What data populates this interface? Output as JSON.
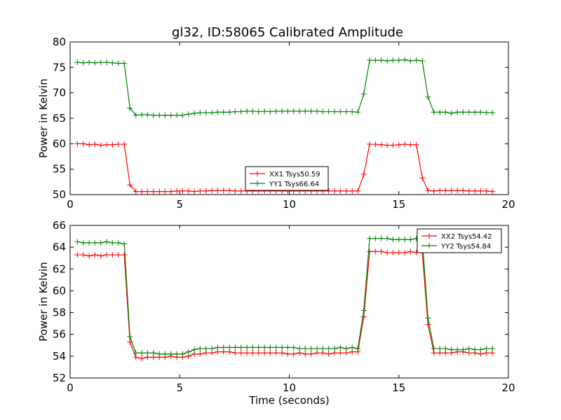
{
  "figure_title": "gl32, ID:58065 Calibrated Amplitude",
  "colors": {
    "xx": "#ff0000",
    "yy": "#008000"
  },
  "chart_data": [
    {
      "type": "line",
      "title": "gl32, ID:58065 Calibrated Amplitude",
      "xlabel": "",
      "ylabel": "Power in Kelvin",
      "xlim": [
        0,
        20
      ],
      "ylim": [
        50,
        80
      ],
      "xticks": [
        "0",
        "5",
        "10",
        "15",
        "20"
      ],
      "yticks": [
        "50",
        "55",
        "60",
        "65",
        "70",
        "75",
        "80"
      ],
      "grid": false,
      "legend_position": "lower-center",
      "x": [
        0.33,
        0.6,
        0.87,
        1.13,
        1.4,
        1.67,
        1.93,
        2.2,
        2.47,
        2.73,
        3.0,
        3.27,
        3.53,
        3.8,
        4.07,
        4.33,
        4.6,
        4.87,
        5.13,
        5.4,
        5.67,
        5.93,
        6.2,
        6.47,
        6.73,
        7.0,
        7.27,
        7.53,
        7.8,
        8.07,
        8.33,
        8.6,
        8.87,
        9.13,
        9.4,
        9.67,
        9.93,
        10.2,
        10.47,
        10.73,
        11.0,
        11.27,
        11.53,
        11.8,
        12.07,
        12.33,
        12.6,
        12.87,
        13.13,
        13.4,
        13.67,
        13.93,
        14.2,
        14.47,
        14.73,
        15.0,
        15.27,
        15.53,
        15.8,
        16.07,
        16.33,
        16.6,
        16.87,
        17.13,
        17.4,
        17.67,
        17.93,
        18.2,
        18.47,
        18.73,
        19.0,
        19.27
      ],
      "series": [
        {
          "name": "XX1 Tsys50.59",
          "color": "#ff0000",
          "values": [
            60.0,
            60.0,
            59.8,
            59.9,
            59.7,
            59.8,
            59.8,
            59.9,
            59.9,
            51.9,
            50.6,
            50.6,
            50.6,
            50.6,
            50.6,
            50.6,
            50.6,
            50.7,
            50.7,
            50.7,
            50.6,
            50.7,
            50.7,
            50.8,
            50.8,
            50.8,
            50.8,
            50.7,
            50.7,
            50.7,
            50.7,
            50.7,
            50.7,
            50.7,
            50.7,
            50.7,
            50.7,
            50.7,
            50.7,
            50.7,
            50.7,
            50.7,
            50.7,
            50.7,
            50.7,
            50.7,
            50.7,
            50.7,
            50.7,
            54.0,
            59.9,
            59.9,
            59.8,
            59.7,
            59.7,
            59.8,
            59.9,
            59.8,
            59.8,
            53.3,
            50.8,
            50.7,
            50.8,
            50.8,
            50.8,
            50.8,
            50.8,
            50.7,
            50.7,
            50.7,
            50.7,
            50.6
          ]
        },
        {
          "name": "YY1 Tsys66.64",
          "color": "#008000",
          "values": [
            76.0,
            75.9,
            76.0,
            75.9,
            76.0,
            76.0,
            75.9,
            75.8,
            75.8,
            67.0,
            65.6,
            65.7,
            65.7,
            65.6,
            65.6,
            65.6,
            65.6,
            65.6,
            65.6,
            65.8,
            66.0,
            66.1,
            66.1,
            66.1,
            66.2,
            66.2,
            66.2,
            66.3,
            66.3,
            66.4,
            66.4,
            66.3,
            66.4,
            66.3,
            66.4,
            66.4,
            66.4,
            66.4,
            66.4,
            66.4,
            66.4,
            66.4,
            66.3,
            66.3,
            66.3,
            66.3,
            66.3,
            66.3,
            66.2,
            69.8,
            76.4,
            76.4,
            76.4,
            76.3,
            76.4,
            76.4,
            76.5,
            76.3,
            76.4,
            76.3,
            69.2,
            66.2,
            66.2,
            66.2,
            66.0,
            66.2,
            66.2,
            66.2,
            66.2,
            66.2,
            66.1,
            66.1
          ]
        }
      ]
    },
    {
      "type": "line",
      "title": "",
      "xlabel": "Time (seconds)",
      "ylabel": "Power in Kelvin",
      "xlim": [
        0,
        20
      ],
      "ylim": [
        52,
        66
      ],
      "xticks": [
        "0",
        "5",
        "10",
        "15",
        "20"
      ],
      "yticks": [
        "52",
        "54",
        "56",
        "58",
        "60",
        "62",
        "64",
        "66"
      ],
      "grid": false,
      "legend_position": "upper-right",
      "x": [
        0.33,
        0.6,
        0.87,
        1.13,
        1.4,
        1.67,
        1.93,
        2.2,
        2.47,
        2.73,
        3.0,
        3.27,
        3.53,
        3.8,
        4.07,
        4.33,
        4.6,
        4.87,
        5.13,
        5.4,
        5.67,
        5.93,
        6.2,
        6.47,
        6.73,
        7.0,
        7.27,
        7.53,
        7.8,
        8.07,
        8.33,
        8.6,
        8.87,
        9.13,
        9.4,
        9.67,
        9.93,
        10.2,
        10.47,
        10.73,
        11.0,
        11.27,
        11.53,
        11.8,
        12.07,
        12.33,
        12.6,
        12.87,
        13.13,
        13.4,
        13.67,
        13.93,
        14.2,
        14.47,
        14.73,
        15.0,
        15.27,
        15.53,
        15.8,
        16.07,
        16.33,
        16.6,
        16.87,
        17.13,
        17.4,
        17.67,
        17.93,
        18.2,
        18.47,
        18.73,
        19.0,
        19.27
      ],
      "series": [
        {
          "name": "XX2 Tsys54.42",
          "color": "#ff0000",
          "values": [
            63.3,
            63.3,
            63.2,
            63.3,
            63.2,
            63.3,
            63.3,
            63.3,
            63.3,
            55.3,
            53.9,
            53.8,
            53.9,
            53.9,
            53.9,
            53.9,
            54.0,
            53.9,
            53.9,
            54.0,
            54.2,
            54.2,
            54.3,
            54.3,
            54.4,
            54.4,
            54.4,
            54.3,
            54.3,
            54.3,
            54.3,
            54.3,
            54.3,
            54.3,
            54.3,
            54.3,
            54.2,
            54.2,
            54.3,
            54.2,
            54.2,
            54.3,
            54.3,
            54.2,
            54.3,
            54.3,
            54.3,
            54.4,
            54.4,
            57.6,
            63.6,
            63.6,
            63.6,
            63.5,
            63.5,
            63.5,
            63.5,
            63.6,
            63.5,
            63.5,
            56.9,
            54.3,
            54.3,
            54.3,
            54.3,
            54.4,
            54.4,
            54.3,
            54.3,
            54.2,
            54.3,
            54.3
          ]
        },
        {
          "name": "YY2 Tsys54.84",
          "color": "#008000",
          "values": [
            64.5,
            64.4,
            64.4,
            64.4,
            64.4,
            64.5,
            64.4,
            64.4,
            64.3,
            55.8,
            54.3,
            54.3,
            54.3,
            54.3,
            54.2,
            54.2,
            54.2,
            54.2,
            54.2,
            54.4,
            54.6,
            54.7,
            54.7,
            54.7,
            54.8,
            54.8,
            54.8,
            54.8,
            54.8,
            54.8,
            54.8,
            54.8,
            54.8,
            54.8,
            54.8,
            54.8,
            54.8,
            54.8,
            54.7,
            54.7,
            54.7,
            54.7,
            54.7,
            54.7,
            54.7,
            54.8,
            54.7,
            54.8,
            54.7,
            58.2,
            64.8,
            64.8,
            64.8,
            64.8,
            64.7,
            64.7,
            64.7,
            64.7,
            64.8,
            64.7,
            57.5,
            54.7,
            54.7,
            54.7,
            54.6,
            54.6,
            54.6,
            54.7,
            54.6,
            54.6,
            54.7,
            54.7
          ]
        }
      ]
    }
  ]
}
